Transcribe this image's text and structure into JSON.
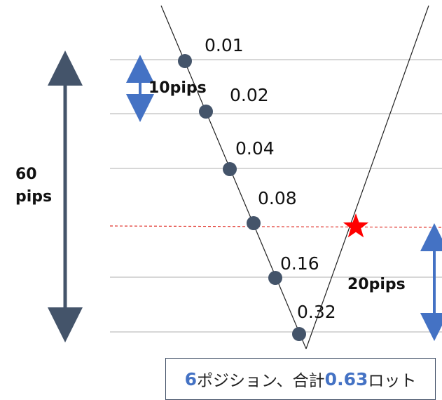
{
  "lots": [
    "0.01",
    "0.02",
    "0.04",
    "0.08",
    "0.16",
    "0.32"
  ],
  "labels": {
    "total_range_line1": "60",
    "total_range_line2": "pips",
    "step": "10pips",
    "rebound": "20pips"
  },
  "summary": {
    "count": "6",
    "text1": "ポジション、合計",
    "total": "0.63",
    "text2": "ロット"
  },
  "colors": {
    "arrow_dark": "#44546a",
    "arrow_blue": "#4472c4",
    "star": "#ff0000",
    "dashed_line": "#e0342c",
    "dot": "#44546a",
    "grid": "#bfbfbf"
  }
}
